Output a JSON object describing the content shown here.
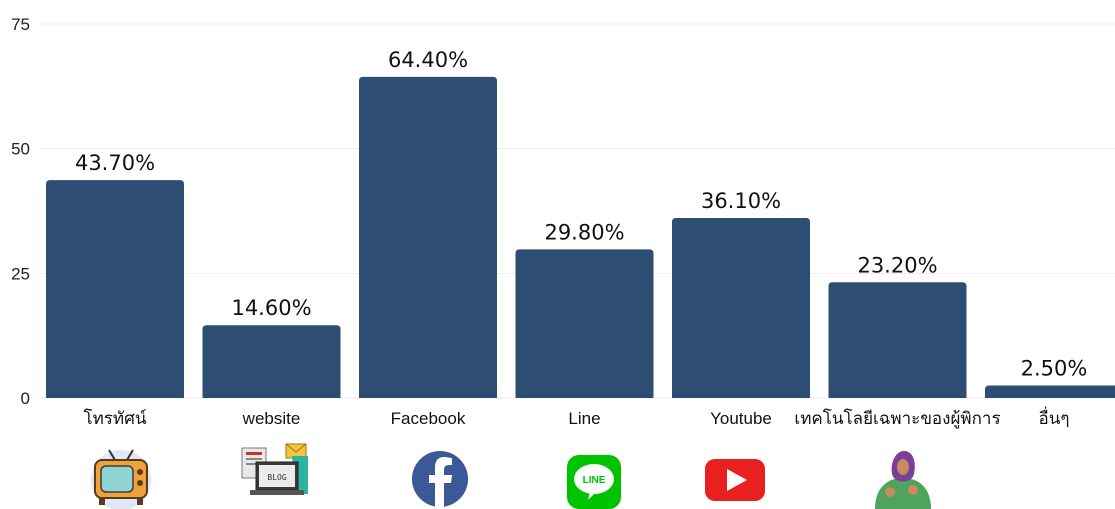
{
  "chart_data": {
    "type": "bar",
    "categories": [
      "โทรทัศน์",
      "website",
      "Facebook",
      "Line",
      "Youtube",
      "เทคโนโลยีเฉพาะของผู้พิการ",
      "อื่นๆ"
    ],
    "values": [
      43.7,
      14.6,
      64.4,
      29.8,
      36.1,
      23.2,
      2.5
    ],
    "value_labels": [
      "43.70%",
      "14.60%",
      "64.40%",
      "29.80%",
      "36.10%",
      "23.20%",
      "2.50%"
    ],
    "yticks": [
      0,
      25,
      50,
      75
    ],
    "ylim": [
      0,
      75
    ],
    "grid": true,
    "colors": {
      "bar": "#2e4d72",
      "grid": "#eeeeee"
    },
    "icons": [
      "retro-tv-icon",
      "blog-laptop-icon",
      "facebook-icon",
      "line-app-icon",
      "youtube-icon",
      "sign-language-person-icon",
      null
    ]
  }
}
